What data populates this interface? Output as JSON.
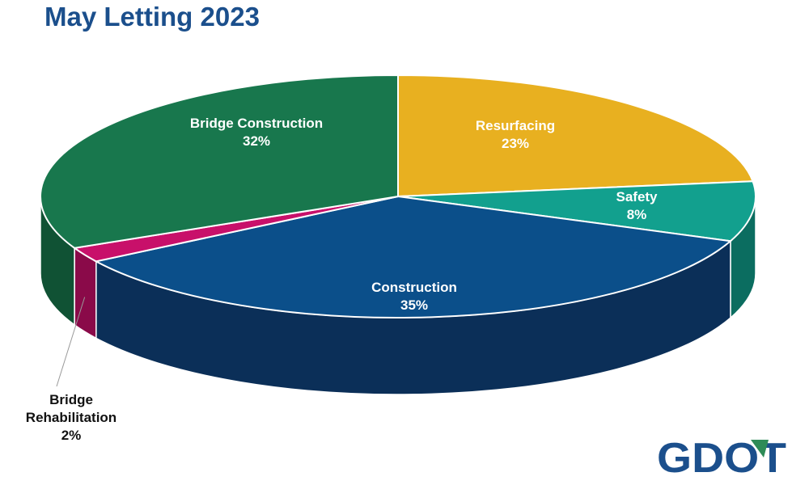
{
  "page": {
    "logo_text": "GDOT"
  },
  "colors": {
    "title": "#1b4f8c",
    "logo": "#1b4f8c",
    "logo_accent": "#2e8b57"
  },
  "chart_data": {
    "type": "pie",
    "title": "May Letting 2023",
    "style": "3d",
    "slices": [
      {
        "label": "Resurfacing",
        "value": 23,
        "value_text": "23%",
        "color": "#e8b020",
        "side_color": "#a87c10",
        "label_color": "#ffffff"
      },
      {
        "label": "Safety",
        "value": 8,
        "value_text": "8%",
        "color": "#12a08e",
        "side_color": "#0b6d60",
        "label_color": "#ffffff"
      },
      {
        "label": "Construction",
        "value": 35,
        "value_text": "35%",
        "color": "#0b4f8a",
        "side_color": "#0b2f58",
        "label_color": "#ffffff"
      },
      {
        "label": "Bridge Rehabilitation",
        "value": 2,
        "value_text": "2%",
        "color": "#c8106a",
        "side_color": "#8a0a49",
        "label_color": "#111111",
        "label_outside": true
      },
      {
        "label": "Bridge Construction",
        "value": 32,
        "value_text": "32%",
        "color": "#18774d",
        "side_color": "#105234",
        "label_color": "#ffffff"
      }
    ]
  }
}
